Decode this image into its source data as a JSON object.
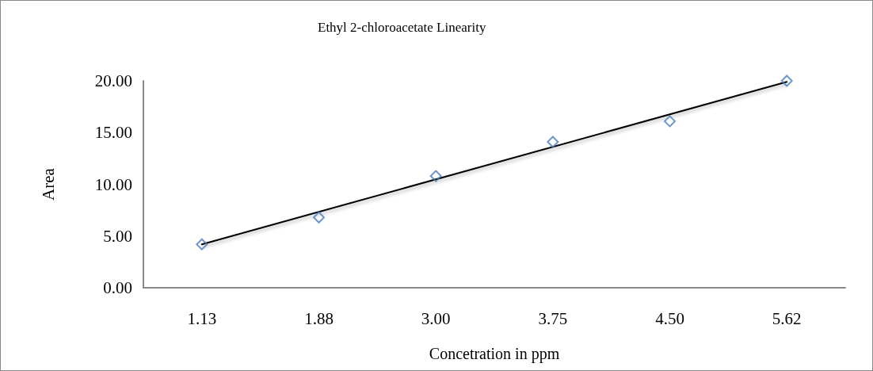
{
  "chart_data": {
    "type": "scatter",
    "title": "Ethyl 2-chloroacetate Linearity",
    "xlabel": "Concetration in ppm",
    "ylabel": "Area",
    "categories": [
      "1.13",
      "1.88",
      "3.00",
      "3.75",
      "4.50",
      "5.62"
    ],
    "series": [
      {
        "color": "#4a7ebb",
        "values": [
          4.2,
          6.8,
          10.8,
          14.1,
          16.1,
          20.0
        ],
        "marker": "diamond"
      },
      {
        "type": "line",
        "color": "#000000",
        "x": [
          "1.13",
          "5.62"
        ],
        "values": [
          4.2,
          19.9
        ],
        "marker": "none",
        "line_style": "solid"
      }
    ],
    "ylim": [
      0,
      20
    ],
    "yticks": [
      {
        "value": 0,
        "label": "0.00"
      },
      {
        "value": 5,
        "label": "5.00"
      },
      {
        "value": 10,
        "label": "10.00"
      },
      {
        "value": 15,
        "label": "15.00"
      },
      {
        "value": 20,
        "label": "20.00"
      }
    ],
    "grid": false
  }
}
